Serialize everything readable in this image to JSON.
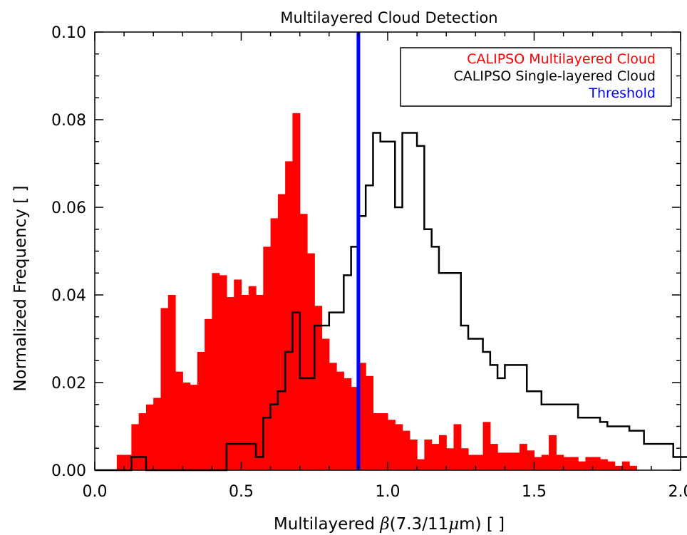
{
  "chart_data": {
    "type": "bar",
    "title": "Multilayered Cloud Detection",
    "xlabel_prefix": "Multilayered ",
    "xlabel_symbol": "β",
    "xlabel_mid": "(7.3/11",
    "xlabel_mu": "μ",
    "xlabel_suffix": "m) [ ]",
    "ylabel": "Normalized Frequency [ ]",
    "xlim": [
      0.0,
      2.0
    ],
    "ylim": [
      0.0,
      0.1
    ],
    "xticks": [
      "0.0",
      "0.5",
      "1.0",
      "1.5",
      "2.0"
    ],
    "yticks": [
      "0.00",
      "0.02",
      "0.04",
      "0.06",
      "0.08",
      "0.10"
    ],
    "bin_width": 0.025,
    "threshold": 0.9,
    "legend_position": "top-right",
    "series": [
      {
        "name": "CALIPSO Multilayered Cloud",
        "color": "#ff0000",
        "style": "filled-histogram",
        "bin_start": 0.075,
        "values": [
          0.0035,
          0.0035,
          0.0105,
          0.013,
          0.015,
          0.0165,
          0.037,
          0.04,
          0.0225,
          0.02,
          0.0195,
          0.027,
          0.0345,
          0.045,
          0.0445,
          0.0395,
          0.0435,
          0.04,
          0.042,
          0.04,
          0.051,
          0.0575,
          0.063,
          0.0705,
          0.0815,
          0.0585,
          0.0495,
          0.0375,
          0.03,
          0.0245,
          0.0225,
          0.021,
          0.019,
          0.0245,
          0.0215,
          0.013,
          0.013,
          0.0115,
          0.0105,
          0.009,
          0.007,
          0.0025,
          0.007,
          0.006,
          0.008,
          0.005,
          0.0105,
          0.005,
          0.0035,
          0.0035,
          0.011,
          0.006,
          0.004,
          0.004,
          0.004,
          0.006,
          0.0045,
          0.003,
          0.0035,
          0.008,
          0.0035,
          0.003,
          0.003,
          0.002,
          0.003,
          0.003,
          0.0025,
          0.002,
          0.001,
          0.002,
          0.001
        ]
      },
      {
        "name": "CALIPSO Single-layered Cloud",
        "color": "#000000",
        "style": "step-line",
        "bin_start": 0.0,
        "values": [
          0.0,
          0.0,
          0.0,
          0.0,
          0.0,
          0.003,
          0.003,
          0.0,
          0.0,
          0.0,
          0.0,
          0.0,
          0.0,
          0.0,
          0.0,
          0.0,
          0.0,
          0.0,
          0.006,
          0.006,
          0.006,
          0.006,
          0.003,
          0.012,
          0.015,
          0.018,
          0.027,
          0.036,
          0.021,
          0.021,
          0.033,
          0.033,
          0.036,
          0.036,
          0.0445,
          0.051,
          0.058,
          0.065,
          0.077,
          0.075,
          0.075,
          0.06,
          0.077,
          0.077,
          0.074,
          0.055,
          0.051,
          0.045,
          0.045,
          0.045,
          0.033,
          0.03,
          0.03,
          0.027,
          0.024,
          0.021,
          0.024,
          0.024,
          0.024,
          0.018,
          0.018,
          0.015,
          0.015,
          0.015,
          0.015,
          0.015,
          0.012,
          0.012,
          0.012,
          0.011,
          0.01,
          0.01,
          0.01,
          0.009,
          0.009,
          0.006,
          0.006,
          0.006,
          0.006,
          0.003,
          0.003
        ]
      }
    ]
  },
  "legend": {
    "items": [
      {
        "label": "CALIPSO Multilayered Cloud",
        "color": "#ff0000"
      },
      {
        "label": "CALIPSO Single-layered Cloud",
        "color": "#000000"
      },
      {
        "label": "Threshold",
        "color": "#0000ff"
      }
    ]
  },
  "colors": {
    "multilayered": "#ff0000",
    "single_layered": "#000000",
    "threshold": "#0000ff",
    "axes": "#000000",
    "background": "#ffffff"
  }
}
